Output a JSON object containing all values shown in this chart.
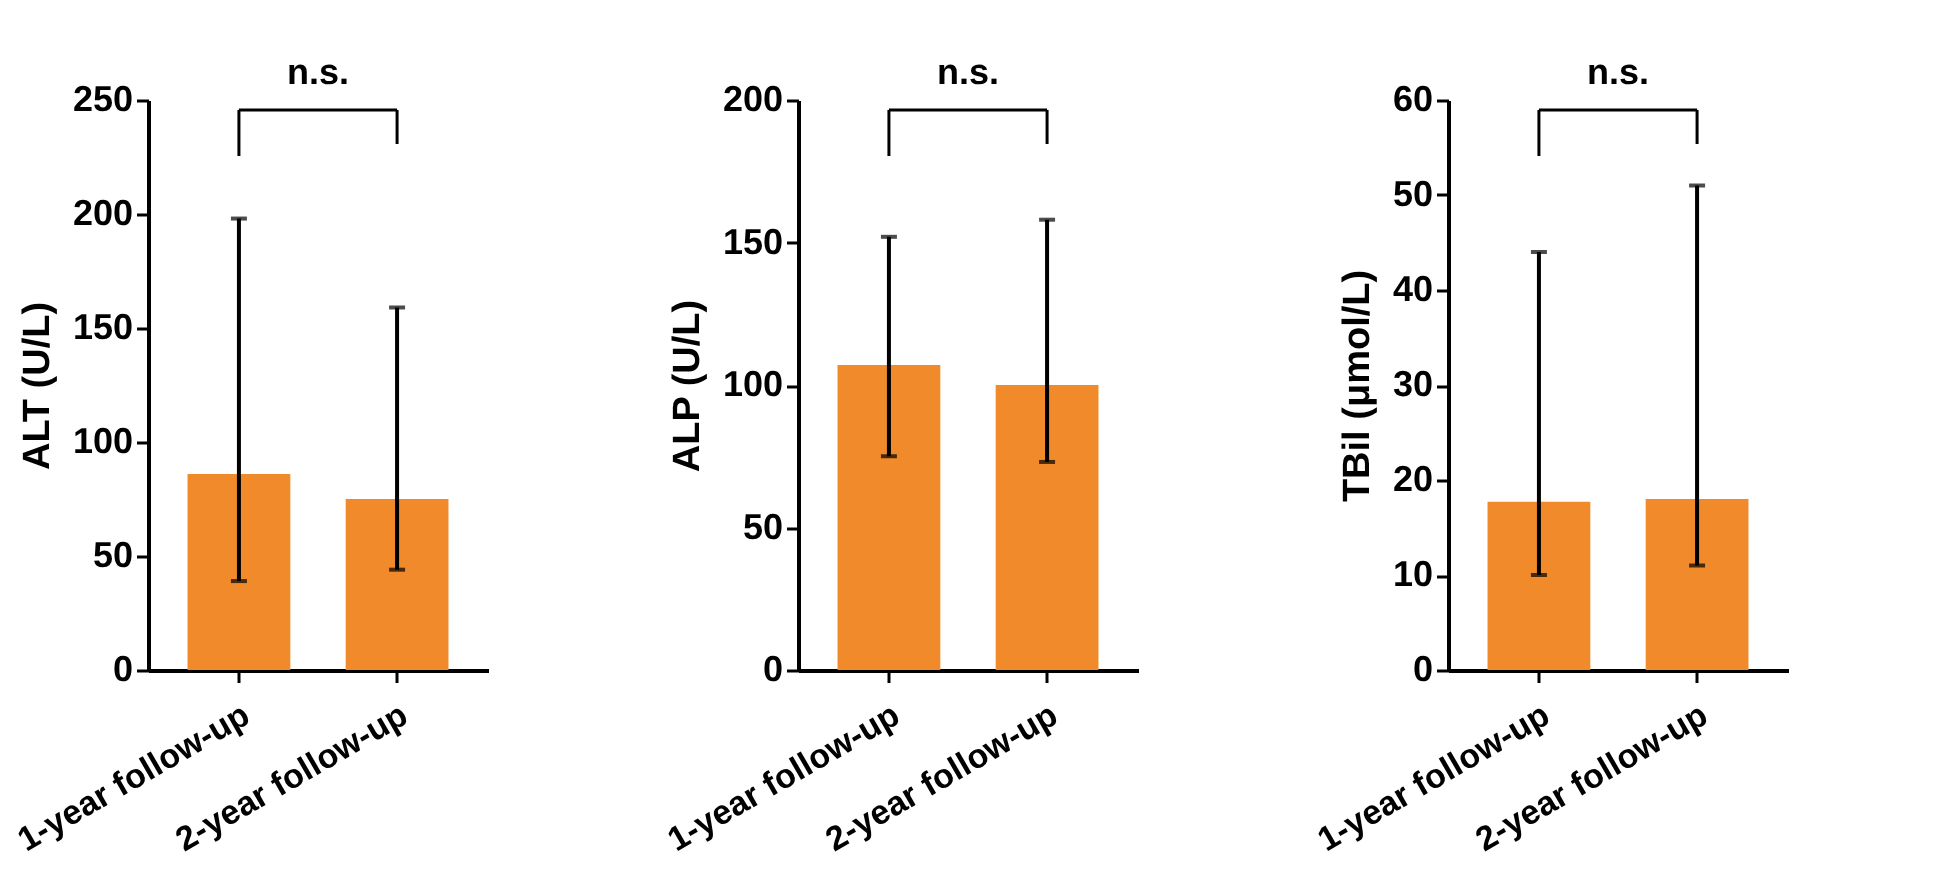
{
  "chart_data": [
    {
      "type": "bar",
      "ylabel": "ALT (U/L)",
      "categories": [
        "1-year follow-up",
        "2-year follow-up"
      ],
      "values": [
        86,
        75
      ],
      "errors": [
        [
          39,
          198
        ],
        [
          44,
          159
        ]
      ],
      "color": "#f08a2a",
      "ylim": [
        0,
        250
      ],
      "yticks": [
        0,
        50,
        100,
        150,
        200,
        250
      ],
      "annotations": [
        "n.s."
      ]
    },
    {
      "type": "bar",
      "ylabel": "ALP (U/L)",
      "categories": [
        "1-year follow-up",
        "2-year follow-up"
      ],
      "values": [
        107,
        100
      ],
      "errors": [
        [
          75,
          152
        ],
        [
          73,
          158
        ]
      ],
      "color": "#f08a2a",
      "ylim": [
        0,
        200
      ],
      "yticks": [
        0,
        50,
        100,
        150,
        200
      ],
      "annotations": [
        "n.s."
      ]
    },
    {
      "type": "bar",
      "ylabel": "TBil (μmol/L)",
      "categories": [
        "1-year follow-up",
        "2-year follow-up"
      ],
      "values": [
        17.7,
        18
      ],
      "errors": [
        [
          10,
          44
        ],
        [
          11,
          51
        ]
      ],
      "color": "#f08a2a",
      "ylim": [
        0,
        60
      ],
      "yticks": [
        0,
        10,
        20,
        30,
        40,
        50,
        60
      ],
      "annotations": [
        "n.s."
      ]
    }
  ]
}
